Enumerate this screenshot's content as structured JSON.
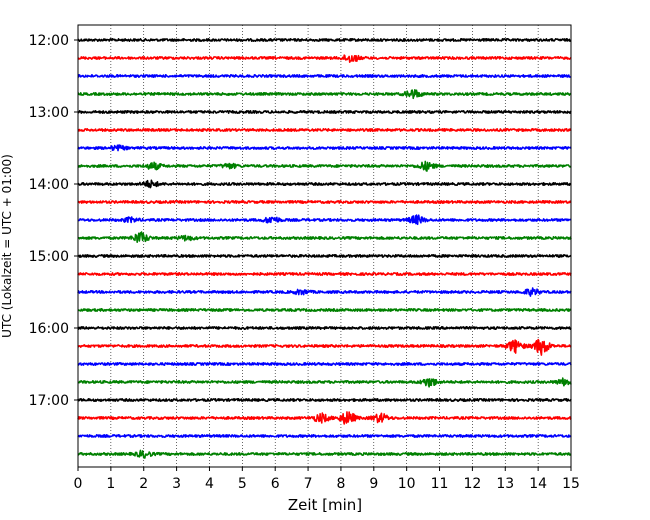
{
  "chart_data": {
    "type": "line",
    "title": "",
    "xlabel": "Zeit  [min]",
    "ylabel": "UTC (Lokalzeit = UTC + 01:00)",
    "xlim": [
      0,
      15
    ],
    "x_ticks": [
      "0",
      "1",
      "2",
      "3",
      "4",
      "5",
      "6",
      "7",
      "8",
      "9",
      "10",
      "11",
      "12",
      "13",
      "14",
      "15"
    ],
    "y_tick_labels": [
      "12:00",
      "13:00",
      "14:00",
      "15:00",
      "16:00",
      "17:00"
    ],
    "grid": "vertical dotted at each minute",
    "legend": "none",
    "trace_colors": [
      "#000000",
      "#ff0000",
      "#0000ff",
      "#008000"
    ],
    "traces": [
      {
        "start": "12:00",
        "color": "#000000",
        "events": []
      },
      {
        "start": "12:15",
        "color": "#ff0000",
        "events": [
          {
            "t": 8.3,
            "amp": 4
          }
        ]
      },
      {
        "start": "12:30",
        "color": "#0000ff",
        "events": []
      },
      {
        "start": "12:45",
        "color": "#008000",
        "events": [
          {
            "t": 10.2,
            "amp": 4
          }
        ]
      },
      {
        "start": "13:00",
        "color": "#000000",
        "events": []
      },
      {
        "start": "13:15",
        "color": "#ff0000",
        "events": []
      },
      {
        "start": "13:30",
        "color": "#0000ff",
        "events": [
          {
            "t": 1.2,
            "amp": 2
          }
        ]
      },
      {
        "start": "13:45",
        "color": "#008000",
        "events": [
          {
            "t": 2.3,
            "amp": 3
          },
          {
            "t": 4.6,
            "amp": 2
          },
          {
            "t": 10.6,
            "amp": 4
          }
        ]
      },
      {
        "start": "14:00",
        "color": "#000000",
        "events": [
          {
            "t": 2.2,
            "amp": 3
          }
        ]
      },
      {
        "start": "14:15",
        "color": "#ff0000",
        "events": []
      },
      {
        "start": "14:30",
        "color": "#0000ff",
        "events": [
          {
            "t": 1.6,
            "amp": 2
          },
          {
            "t": 5.9,
            "amp": 3
          },
          {
            "t": 10.3,
            "amp": 4
          }
        ]
      },
      {
        "start": "14:45",
        "color": "#008000",
        "events": [
          {
            "t": 1.9,
            "amp": 5
          },
          {
            "t": 3.3,
            "amp": 2
          }
        ]
      },
      {
        "start": "15:00",
        "color": "#000000",
        "events": []
      },
      {
        "start": "15:15",
        "color": "#ff0000",
        "events": []
      },
      {
        "start": "15:30",
        "color": "#0000ff",
        "events": [
          {
            "t": 6.8,
            "amp": 2
          },
          {
            "t": 13.8,
            "amp": 3
          }
        ]
      },
      {
        "start": "15:45",
        "color": "#008000",
        "events": []
      },
      {
        "start": "16:00",
        "color": "#000000",
        "events": []
      },
      {
        "start": "16:15",
        "color": "#ff0000",
        "events": [
          {
            "t": 13.3,
            "amp": 6
          },
          {
            "t": 14.1,
            "amp": 8
          }
        ]
      },
      {
        "start": "16:30",
        "color": "#0000ff",
        "events": []
      },
      {
        "start": "16:45",
        "color": "#008000",
        "events": [
          {
            "t": 10.7,
            "amp": 4
          },
          {
            "t": 14.8,
            "amp": 3
          }
        ]
      },
      {
        "start": "17:00",
        "color": "#000000",
        "events": []
      },
      {
        "start": "17:15",
        "color": "#ff0000",
        "events": [
          {
            "t": 7.4,
            "amp": 4
          },
          {
            "t": 8.2,
            "amp": 6
          },
          {
            "t": 9.2,
            "amp": 4
          }
        ]
      },
      {
        "start": "17:30",
        "color": "#0000ff",
        "events": []
      },
      {
        "start": "17:45",
        "color": "#008000",
        "events": [
          {
            "t": 2.0,
            "amp": 3
          }
        ]
      }
    ]
  }
}
